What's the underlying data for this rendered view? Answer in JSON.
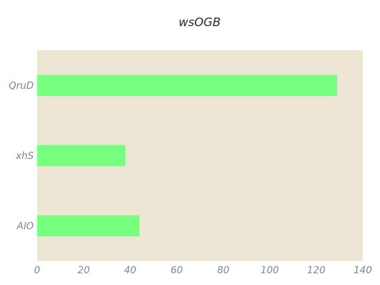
{
  "chart_data": {
    "type": "bar",
    "orientation": "horizontal",
    "title": "wsOGB",
    "xlabel": "",
    "ylabel": "",
    "categories": [
      "QruD",
      "xhS",
      "AlO"
    ],
    "values": [
      129,
      38,
      44
    ],
    "xlim": [
      0,
      140
    ],
    "xticks": [
      0,
      20,
      40,
      60,
      80,
      100,
      120,
      140
    ],
    "grid": false,
    "legend": "none",
    "colors": {
      "bar": "#77ff7f",
      "plot_background": "#ede6d4",
      "tick_text": "#7a8794",
      "title_text": "#2a2a2a"
    }
  }
}
